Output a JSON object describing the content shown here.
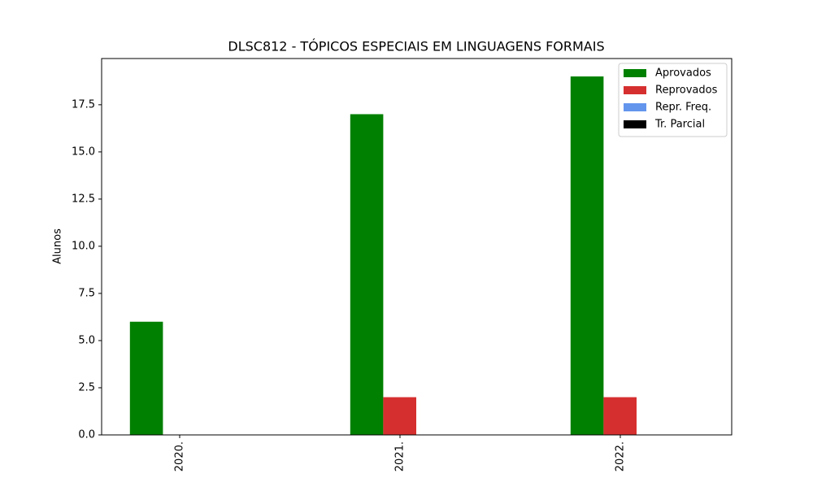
{
  "chart_data": {
    "type": "bar",
    "title": "DLSC812 - TÓPICOS ESPECIAIS EM LINGUAGENS FORMAIS",
    "ylabel": "Alunos",
    "categories": [
      "2020.",
      "2021.",
      "2022."
    ],
    "series": [
      {
        "name": "Aprovados",
        "color": "#008000",
        "values": [
          6,
          17,
          19
        ]
      },
      {
        "name": "Reprovados",
        "color": "#d62f2f",
        "values": [
          0,
          2,
          2
        ]
      },
      {
        "name": "Repr. Freq.",
        "color": "#6495ed",
        "values": [
          0,
          0,
          0
        ]
      },
      {
        "name": "Tr. Parcial",
        "color": "#000000",
        "values": [
          0,
          0,
          0
        ]
      }
    ],
    "ylim": [
      0,
      19.95
    ],
    "yticks": [
      {
        "value": 0,
        "label": "0.0"
      },
      2.5,
      {
        "value": 5,
        "label": "5.0"
      },
      7.5,
      {
        "value": 10,
        "label": "10.0"
      },
      12.5,
      {
        "value": 15,
        "label": "15.0"
      },
      17.5
    ],
    "legend": "upper right"
  }
}
